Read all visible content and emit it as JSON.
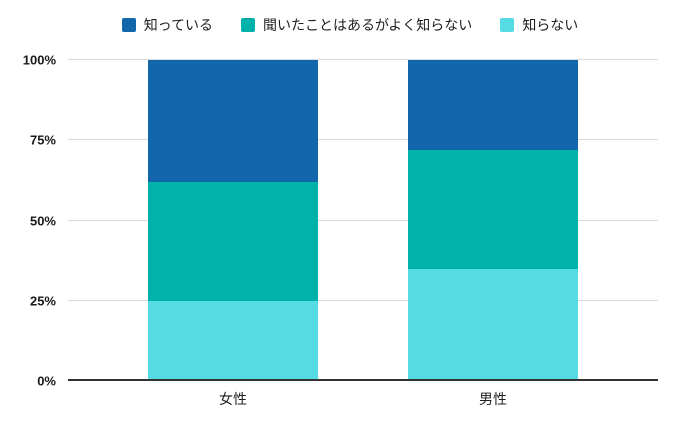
{
  "legend": {
    "position": "top"
  },
  "colors": {
    "background": "#ffffff",
    "axis": "#333333",
    "gridline": "#dcdcdc",
    "text": "#1f1f1f"
  },
  "chart_data": {
    "type": "bar",
    "stacked": true,
    "percent": true,
    "title": "",
    "categories": [
      "女性",
      "男性"
    ],
    "series": [
      {
        "name": "知っている",
        "color": "#1266a9",
        "values": [
          38,
          28
        ]
      },
      {
        "name": "聞いたことはあるがよく知らない",
        "color": "#00b2a9",
        "values": [
          37,
          37
        ]
      },
      {
        "name": "知らない",
        "color": "#55dbe4",
        "values": [
          25,
          35
        ]
      }
    ],
    "yticks": [
      0,
      25,
      50,
      75,
      100
    ],
    "ytick_labels": [
      "0%",
      "25%",
      "50%",
      "75%",
      "100%"
    ],
    "ylim": [
      0,
      100
    ],
    "legend_position": "top",
    "grid": true
  }
}
